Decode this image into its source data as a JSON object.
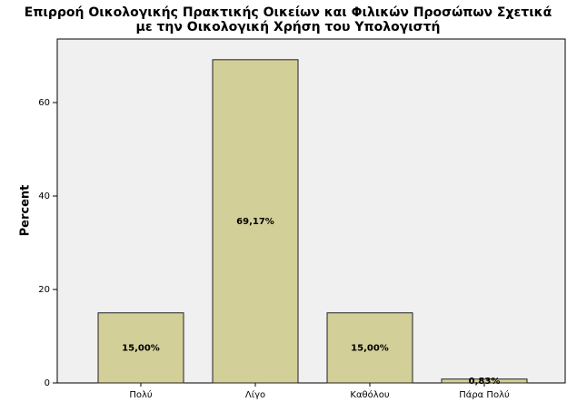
{
  "chart_data": {
    "type": "bar",
    "title": [
      "Επιρροή Οικολογικής Πρακτικής Οικείων και Φιλικών Προσώπων Σχετικά",
      "με την Οικολογική Χρήση του Υπολογιστή"
    ],
    "y_label": "Percent",
    "categories": [
      "Πολύ",
      "Λίγο",
      "Καθόλου",
      "Πάρα Πολύ"
    ],
    "values": [
      15,
      69.17,
      15,
      0.83
    ],
    "value_labels": [
      "15,00%",
      "69,17%",
      "15,00%",
      "0,83%"
    ],
    "color": "#d3cf98",
    "ylim": [
      0,
      73.6
    ],
    "yticks": [
      0,
      20,
      40,
      60
    ]
  }
}
